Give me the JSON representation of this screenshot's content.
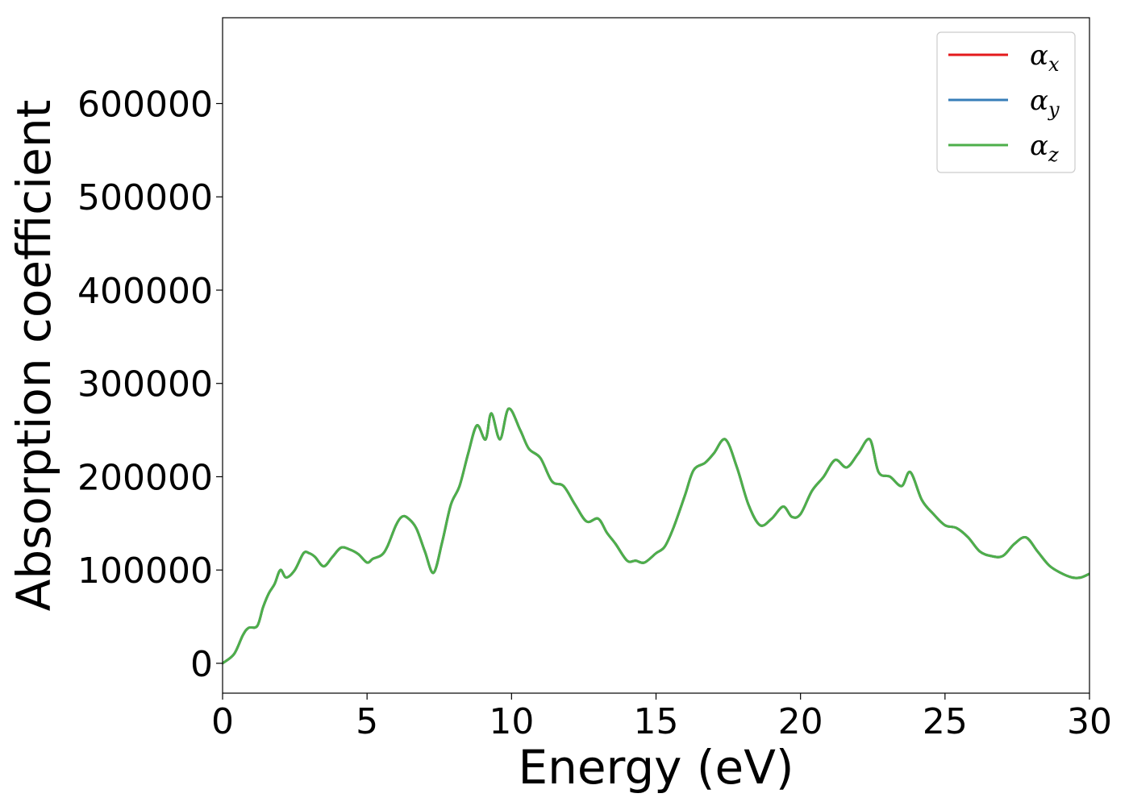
{
  "chart_data": {
    "type": "line",
    "title": "",
    "xlabel": "Energy (eV)",
    "ylabel": "Absorption coefficient",
    "xlim": [
      0,
      30
    ],
    "ylim": [
      -32000,
      692000
    ],
    "grid": false,
    "legend_position": "top-right",
    "x_ticks": [
      0,
      5,
      10,
      15,
      20,
      25,
      30
    ],
    "y_ticks": [
      0,
      100000,
      200000,
      300000,
      400000,
      500000,
      600000
    ],
    "series": [
      {
        "name": "α",
        "subscript": "x",
        "color": "#e41a1c",
        "x": [
          0,
          0.4,
          0.7,
          0.9,
          1.2,
          1.4,
          1.6,
          1.8,
          2.0,
          2.2,
          2.5,
          2.8,
          3.0,
          3.2,
          3.5,
          3.8,
          4.1,
          4.4,
          4.7,
          5.0,
          5.2,
          5.5,
          5.7,
          6.0,
          6.2,
          6.4,
          6.7,
          7.0,
          7.3,
          7.6,
          7.9,
          8.2,
          8.5,
          8.8,
          9.1,
          9.3,
          9.6,
          9.9,
          10.3,
          10.6,
          11.0,
          11.4,
          11.8,
          12.2,
          12.6,
          13.0,
          13.3,
          13.6,
          14.0,
          14.3,
          14.6,
          15.0,
          15.3,
          15.6,
          16.0,
          16.3,
          16.7,
          17.0,
          17.4,
          17.8,
          18.2,
          18.6,
          19.0,
          19.4,
          19.7,
          20.0,
          20.4,
          20.8,
          21.2,
          21.6,
          22.0,
          22.4,
          22.7,
          23.1,
          23.5,
          23.8,
          24.2,
          24.6,
          25.0,
          25.4,
          25.8,
          26.2,
          26.6,
          27.0,
          27.4,
          27.8,
          28.2,
          28.6,
          29.0,
          29.4,
          29.7,
          30.0
        ],
        "values": [
          0,
          10000,
          30000,
          38000,
          40000,
          60000,
          75000,
          85000,
          100000,
          92000,
          100000,
          118000,
          118000,
          114000,
          104000,
          114000,
          124000,
          122000,
          117000,
          108000,
          112000,
          116000,
          125000,
          148000,
          157000,
          156000,
          145000,
          120000,
          97000,
          130000,
          170000,
          190000,
          225000,
          255000,
          240000,
          268000,
          240000,
          273000,
          250000,
          230000,
          220000,
          195000,
          190000,
          170000,
          152000,
          155000,
          140000,
          128000,
          110000,
          110000,
          108000,
          118000,
          125000,
          145000,
          180000,
          207000,
          215000,
          225000,
          240000,
          210000,
          170000,
          148000,
          155000,
          168000,
          157000,
          160000,
          185000,
          200000,
          218000,
          210000,
          225000,
          240000,
          205000,
          200000,
          190000,
          205000,
          175000,
          160000,
          148000,
          145000,
          135000,
          120000,
          115000,
          115000,
          128000,
          135000,
          120000,
          105000,
          97000,
          92000,
          92000,
          96000
        ]
      },
      {
        "name": "α",
        "subscript": "y",
        "color": "#377eb8",
        "x": [
          0,
          0.4,
          0.7,
          0.9,
          1.2,
          1.4,
          1.6,
          1.8,
          2.0,
          2.2,
          2.5,
          2.8,
          3.0,
          3.2,
          3.5,
          3.8,
          4.1,
          4.4,
          4.7,
          5.0,
          5.2,
          5.5,
          5.7,
          6.0,
          6.2,
          6.4,
          6.7,
          7.0,
          7.3,
          7.6,
          7.9,
          8.2,
          8.5,
          8.8,
          9.1,
          9.3,
          9.6,
          9.9,
          10.3,
          10.6,
          11.0,
          11.4,
          11.8,
          12.2,
          12.6,
          13.0,
          13.3,
          13.6,
          14.0,
          14.3,
          14.6,
          15.0,
          15.3,
          15.6,
          16.0,
          16.3,
          16.7,
          17.0,
          17.4,
          17.8,
          18.2,
          18.6,
          19.0,
          19.4,
          19.7,
          20.0,
          20.4,
          20.8,
          21.2,
          21.6,
          22.0,
          22.4,
          22.7,
          23.1,
          23.5,
          23.8,
          24.2,
          24.6,
          25.0,
          25.4,
          25.8,
          26.2,
          26.6,
          27.0,
          27.4,
          27.8,
          28.2,
          28.6,
          29.0,
          29.4,
          29.7,
          30.0
        ],
        "values": [
          0,
          10000,
          30000,
          38000,
          40000,
          60000,
          75000,
          85000,
          100000,
          92000,
          100000,
          118000,
          118000,
          114000,
          104000,
          114000,
          124000,
          122000,
          117000,
          108000,
          112000,
          116000,
          125000,
          148000,
          157000,
          156000,
          145000,
          120000,
          97000,
          130000,
          170000,
          190000,
          225000,
          255000,
          240000,
          268000,
          240000,
          273000,
          250000,
          230000,
          220000,
          195000,
          190000,
          170000,
          152000,
          155000,
          140000,
          128000,
          110000,
          110000,
          108000,
          118000,
          125000,
          145000,
          180000,
          207000,
          215000,
          225000,
          240000,
          210000,
          170000,
          148000,
          155000,
          168000,
          157000,
          160000,
          185000,
          200000,
          218000,
          210000,
          225000,
          240000,
          205000,
          200000,
          190000,
          205000,
          175000,
          160000,
          148000,
          145000,
          135000,
          120000,
          115000,
          115000,
          128000,
          135000,
          120000,
          105000,
          97000,
          92000,
          92000,
          96000
        ]
      },
      {
        "name": "α",
        "subscript": "z",
        "color": "#4daf4a",
        "x": [
          0,
          0.4,
          0.7,
          0.9,
          1.2,
          1.4,
          1.6,
          1.8,
          2.0,
          2.2,
          2.5,
          2.8,
          3.0,
          3.2,
          3.5,
          3.8,
          4.1,
          4.4,
          4.7,
          5.0,
          5.2,
          5.5,
          5.7,
          6.0,
          6.2,
          6.4,
          6.7,
          7.0,
          7.3,
          7.6,
          7.9,
          8.2,
          8.5,
          8.8,
          9.1,
          9.3,
          9.6,
          9.9,
          10.3,
          10.6,
          11.0,
          11.4,
          11.8,
          12.2,
          12.6,
          13.0,
          13.3,
          13.6,
          14.0,
          14.3,
          14.6,
          15.0,
          15.3,
          15.6,
          16.0,
          16.3,
          16.7,
          17.0,
          17.4,
          17.8,
          18.2,
          18.6,
          19.0,
          19.4,
          19.7,
          20.0,
          20.4,
          20.8,
          21.2,
          21.6,
          22.0,
          22.4,
          22.7,
          23.1,
          23.5,
          23.8,
          24.2,
          24.6,
          25.0,
          25.4,
          25.8,
          26.2,
          26.6,
          27.0,
          27.4,
          27.8,
          28.2,
          28.6,
          29.0,
          29.4,
          29.7,
          30.0
        ],
        "values": [
          0,
          10000,
          30000,
          38000,
          40000,
          60000,
          75000,
          85000,
          100000,
          92000,
          100000,
          118000,
          118000,
          114000,
          104000,
          114000,
          124000,
          122000,
          117000,
          108000,
          112000,
          116000,
          125000,
          148000,
          157000,
          156000,
          145000,
          120000,
          97000,
          130000,
          170000,
          190000,
          225000,
          255000,
          240000,
          268000,
          240000,
          273000,
          250000,
          230000,
          220000,
          195000,
          190000,
          170000,
          152000,
          155000,
          140000,
          128000,
          110000,
          110000,
          108000,
          118000,
          125000,
          145000,
          180000,
          207000,
          215000,
          225000,
          240000,
          210000,
          170000,
          148000,
          155000,
          168000,
          157000,
          160000,
          185000,
          200000,
          218000,
          210000,
          225000,
          240000,
          205000,
          200000,
          190000,
          205000,
          175000,
          160000,
          148000,
          145000,
          135000,
          120000,
          115000,
          115000,
          128000,
          135000,
          120000,
          105000,
          97000,
          92000,
          92000,
          96000
        ]
      }
    ]
  }
}
